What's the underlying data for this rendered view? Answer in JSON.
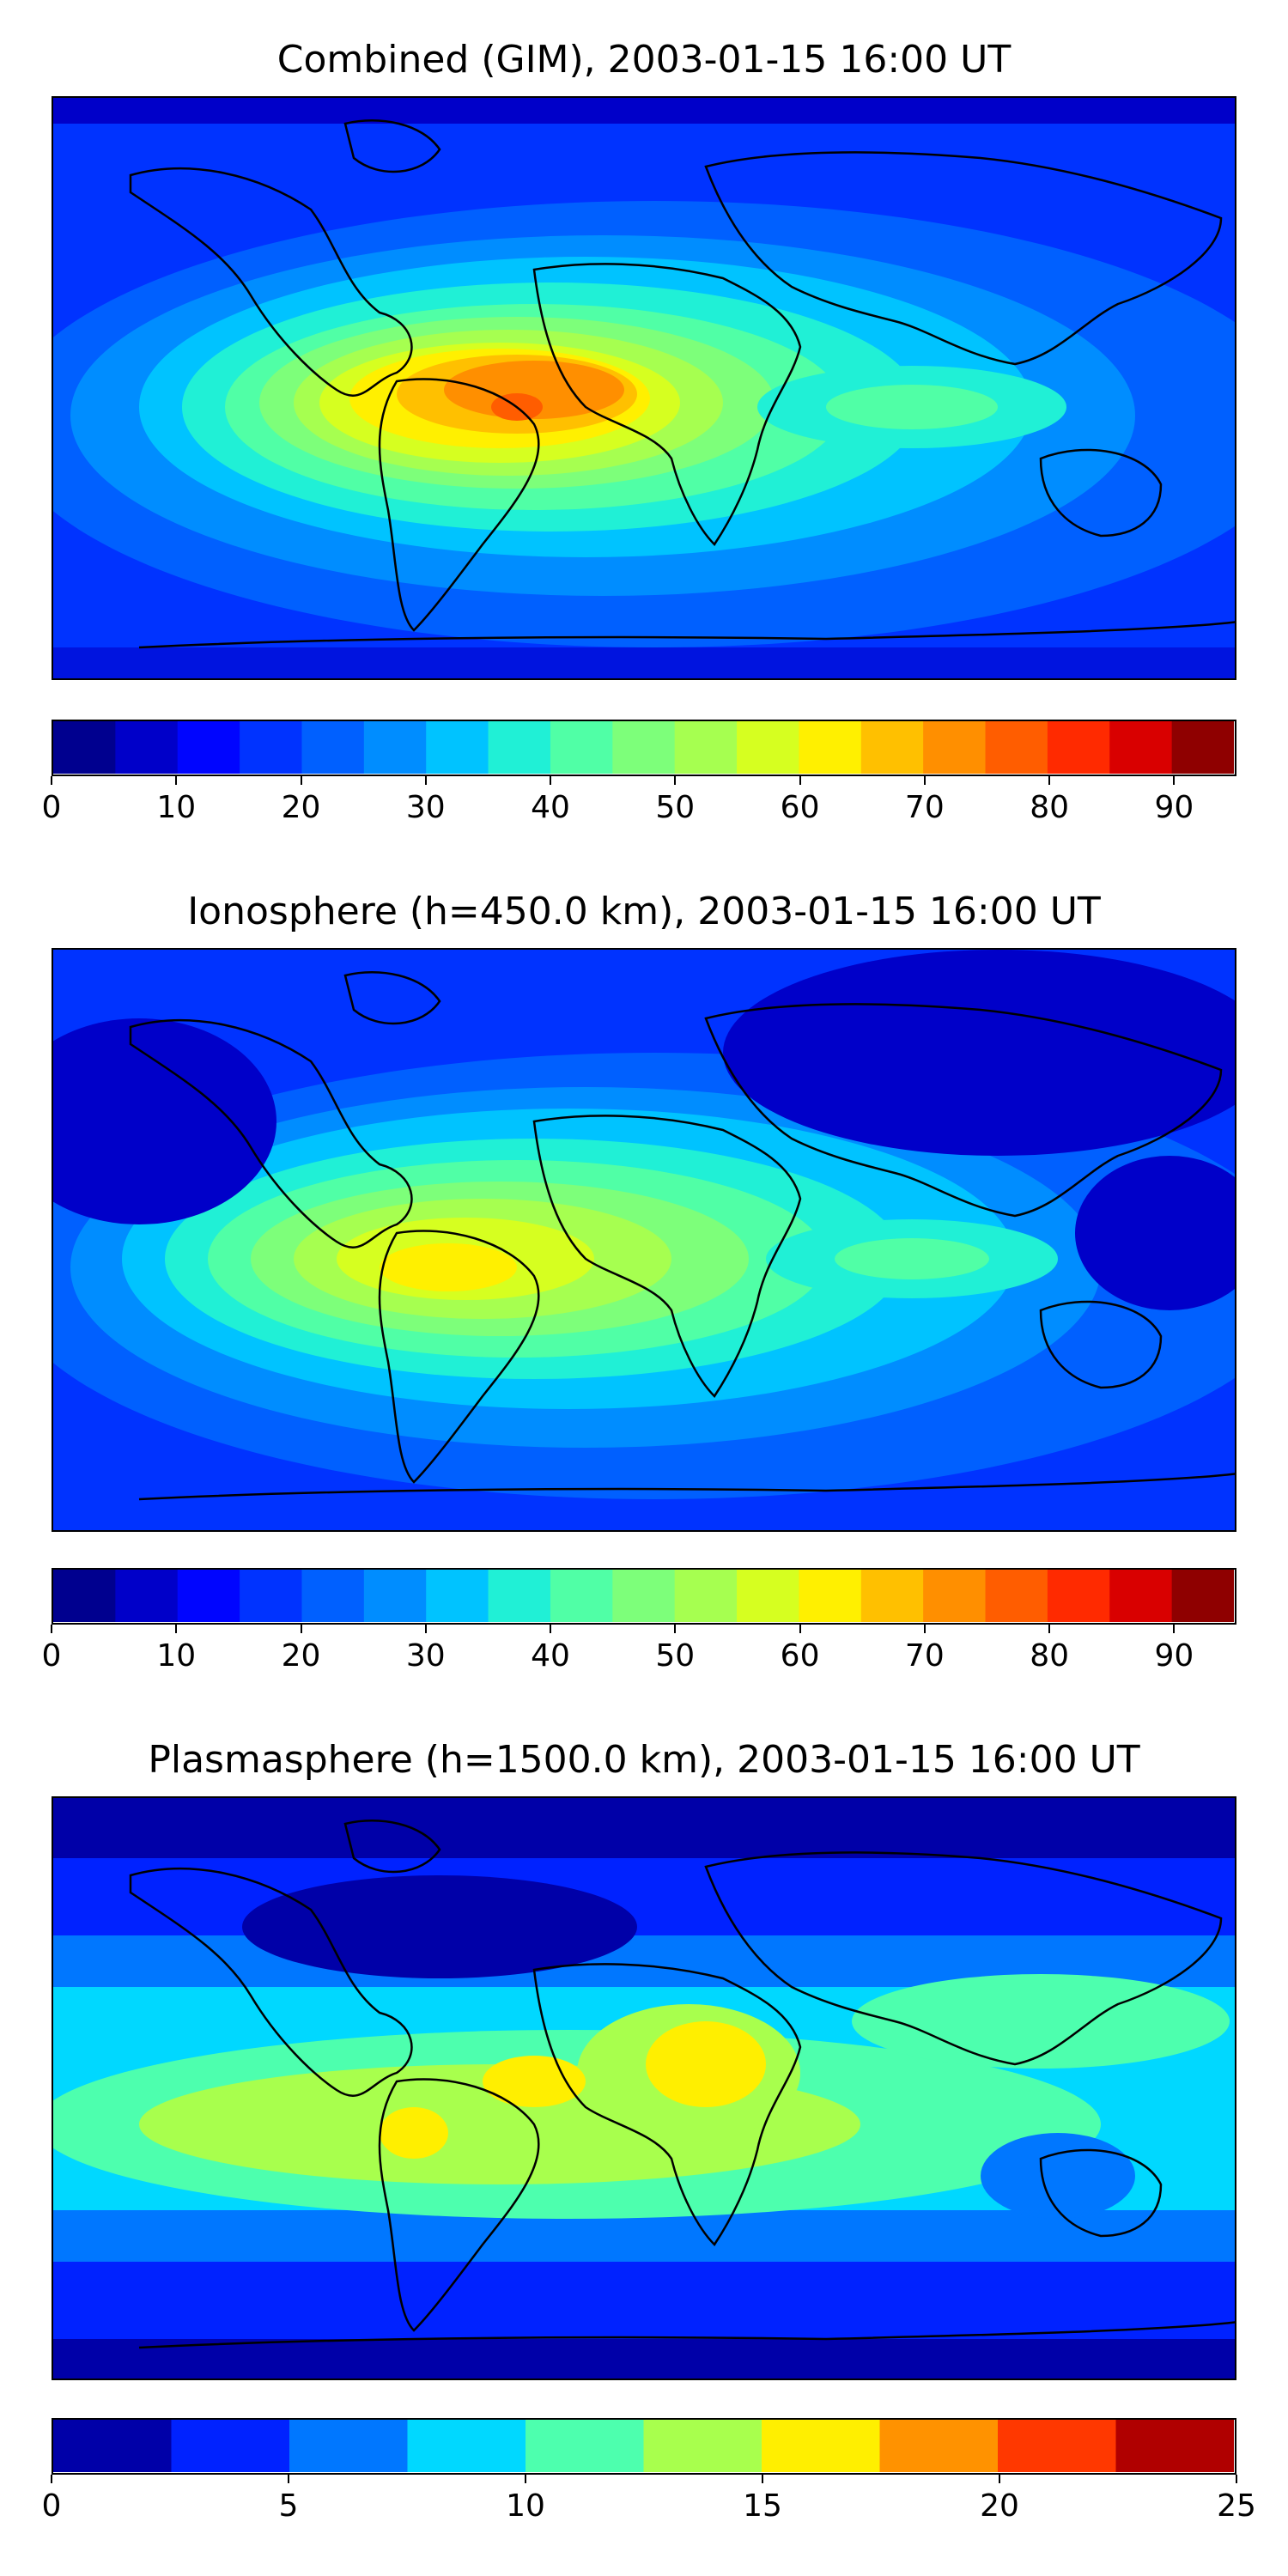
{
  "chart_data": [
    {
      "type": "heatmap",
      "title": "Combined (GIM), 2003-01-15 16:00 UT",
      "colorbar": {
        "min": 0,
        "max": 95,
        "step": 5,
        "ticks": [
          "0",
          "10",
          "20",
          "30",
          "40",
          "50",
          "60",
          "70",
          "80",
          "90"
        ],
        "tick_values": [
          0,
          10,
          20,
          30,
          40,
          50,
          60,
          70,
          80,
          90
        ]
      },
      "colors": [
        "#00008f",
        "#0000c9",
        "#0005ff",
        "#0033ff",
        "#0060ff",
        "#008dff",
        "#00c3ff",
        "#20f0d6",
        "#50ffa6",
        "#7dff7a",
        "#a6ff50",
        "#d6ff20",
        "#fff000",
        "#ffc000",
        "#ff8f00",
        "#ff5d00",
        "#ff2a00",
        "#d90000",
        "#8f0000"
      ],
      "features": "ocean/land outline overlay; equatorial anomaly maximum over South America and Atlantic"
    },
    {
      "type": "heatmap",
      "title": "Ionosphere  (h=450.0 km), 2003-01-15 16:00 UT",
      "colorbar": {
        "min": 0,
        "max": 95,
        "step": 5,
        "ticks": [
          "0",
          "10",
          "20",
          "30",
          "40",
          "50",
          "60",
          "70",
          "80",
          "90"
        ],
        "tick_values": [
          0,
          10,
          20,
          30,
          40,
          50,
          60,
          70,
          80,
          90
        ]
      },
      "colors": [
        "#00008f",
        "#0000c9",
        "#0005ff",
        "#0033ff",
        "#0060ff",
        "#008dff",
        "#00c3ff",
        "#20f0d6",
        "#50ffa6",
        "#7dff7a",
        "#a6ff50",
        "#d6ff20",
        "#fff000",
        "#ffc000",
        "#ff8f00",
        "#ff5d00",
        "#ff2a00",
        "#d90000",
        "#8f0000"
      ]
    },
    {
      "type": "heatmap",
      "title": "Plasmasphere (h=1500.0 km), 2003-01-15 16:00 UT",
      "colorbar": {
        "min": 0,
        "max": 25,
        "step": 2.5,
        "ticks": [
          "0",
          "5",
          "10",
          "15",
          "20",
          "25"
        ],
        "tick_values": [
          0,
          5,
          10,
          15,
          20,
          25
        ]
      },
      "colors": [
        "#0000a8",
        "#0022ff",
        "#0077ff",
        "#00d8ff",
        "#4dffae",
        "#a8ff4d",
        "#ffef00",
        "#ff9200",
        "#ff3800",
        "#b00000"
      ]
    }
  ]
}
